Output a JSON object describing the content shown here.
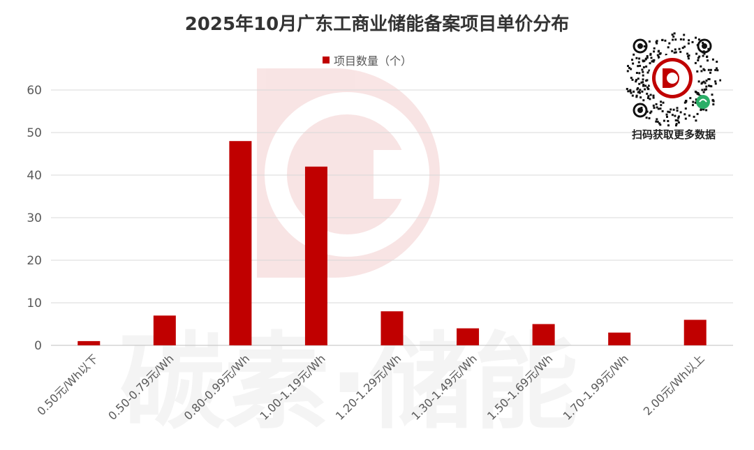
{
  "watermark": {
    "text": "碳素·储能"
  },
  "qr": {
    "caption": "扫码获取更多数据"
  },
  "chart_data": {
    "type": "bar",
    "title": "2025年10月广东工商业储能备案项目单价分布",
    "xlabel": "",
    "ylabel": "",
    "ylim": [
      0,
      60
    ],
    "yticks": [
      0,
      10,
      20,
      30,
      40,
      50,
      60
    ],
    "grid": true,
    "legend_position": "top-center",
    "categories": [
      "0.50元/Wh以下",
      "0.50-0.79元/Wh",
      "0.80-0.99元/Wh",
      "1.00-1.19元/Wh",
      "1.20-1.29元/Wh",
      "1.30-1.49元/Wh",
      "1.50-1.69元/Wh",
      "1.70-1.99元/Wh",
      "2.00元/Wh以上"
    ],
    "series": [
      {
        "name": "项目数量（个）",
        "color": "#c00000",
        "values": [
          1,
          7,
          48,
          42,
          8,
          4,
          5,
          3,
          6
        ]
      }
    ]
  }
}
